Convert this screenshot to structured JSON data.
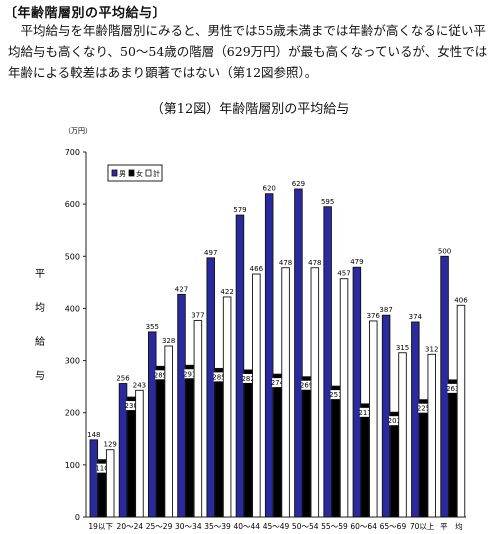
{
  "section_title": "〔年齢階層別の平均給与〕",
  "paragraph": "平均給与を年齢階層別にみると、男性では55歳未満までは年齢が高くなるに従い平均給与も高くなり、50〜54歳の階層（629万円）が最も高くなっているが、女性では年齢による較差はあまり顕著ではない（第12図参照）。",
  "chart_data": {
    "type": "bar",
    "title": "（第12図）年齢階層別の平均給与",
    "unit": "（万円）",
    "ylabel": "平均給与",
    "ylim": [
      0,
      700
    ],
    "yticks": [
      0,
      100,
      200,
      300,
      400,
      500,
      600,
      700
    ],
    "categories": [
      "19以下",
      "20〜24",
      "25〜29",
      "30〜34",
      "35〜39",
      "40〜44",
      "45〜49",
      "50〜54",
      "55〜59",
      "60〜64",
      "65〜69",
      "70以上",
      "平　均"
    ],
    "series": [
      {
        "name": "男",
        "color": "#2a2a9e",
        "values": [
          148,
          256,
          355,
          427,
          497,
          579,
          620,
          629,
          595,
          479,
          387,
          374,
          500
        ]
      },
      {
        "name": "女",
        "color": "#000000",
        "values": [
          110,
          230,
          289,
          291,
          285,
          282,
          274,
          269,
          251,
          217,
          201,
          225,
          263
        ]
      },
      {
        "name": "計",
        "color": "#ffffff",
        "values": [
          129,
          243,
          328,
          377,
          422,
          466,
          478,
          478,
          457,
          376,
          315,
          312,
          406
        ]
      }
    ],
    "legend": "top-left",
    "grid": false
  }
}
